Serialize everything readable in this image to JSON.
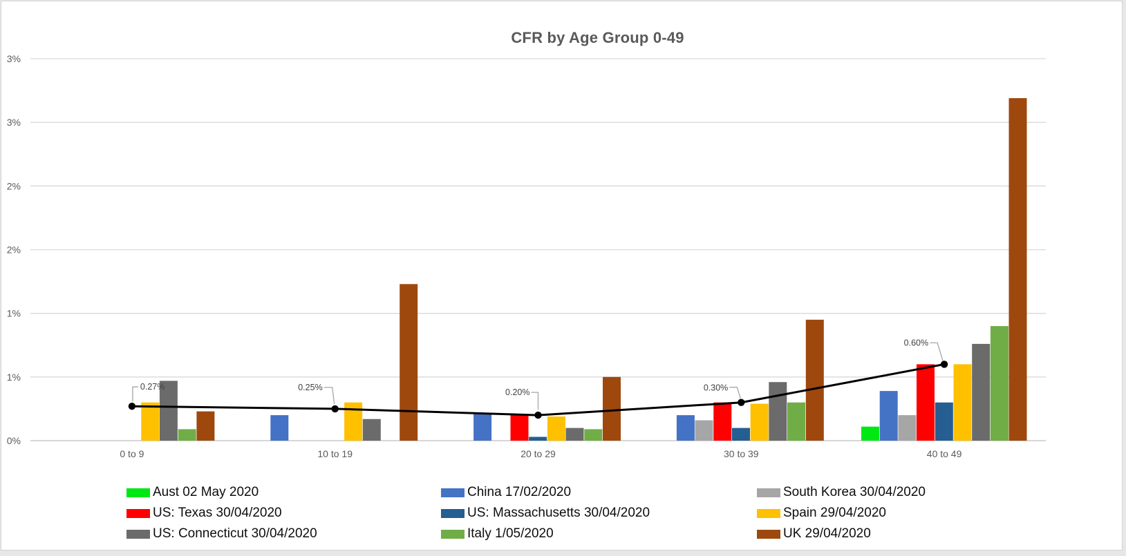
{
  "title": "CFR by Age Group 0-49",
  "y_axis": {
    "tick_labels_top_to_bottom": [
      "3%",
      "3%",
      "2%",
      "2%",
      "1%",
      "1%",
      "0%"
    ]
  },
  "colors": {
    "axis_text": "#595959",
    "data_label_text": "#404040",
    "legend_text": "#0d0d0d",
    "gridline": "#d9d9d9",
    "axis_line": "#bfbfbf",
    "leader_line": "#a6a6a6",
    "trend_line": "#000000",
    "panel_background": "#ffffff",
    "page_background": "#e7e7e7"
  },
  "chart_data": {
    "type": "bar",
    "title": "CFR by Age Group 0-49",
    "xlabel": "",
    "ylabel": "",
    "ylim": [
      0,
      3.0
    ],
    "gridline_step_pct": 0.5,
    "grid": true,
    "legend_position": "bottom",
    "categories": [
      "0 to 9",
      "10 to 19",
      "20 to 29",
      "30 to 39",
      "40 to 49"
    ],
    "series": [
      {
        "name": "Aust 02 May 2020",
        "color": "#00e813",
        "values": [
          0,
          0,
          0,
          0,
          0.11
        ]
      },
      {
        "name": "China 17/02/2020",
        "color": "#4472c4",
        "values": [
          0,
          0.2,
          0.21,
          0.2,
          0.39
        ]
      },
      {
        "name": "South Korea 30/04/2020",
        "color": "#a6a6a6",
        "values": [
          0,
          0,
          0,
          0.16,
          0.2
        ]
      },
      {
        "name": "US: Texas 30/04/2020",
        "color": "#ff0000",
        "values": [
          0,
          0,
          0.2,
          0.3,
          0.6
        ]
      },
      {
        "name": "US: Massachusetts 30/04/2020",
        "color": "#255e91",
        "values": [
          0,
          0,
          0.03,
          0.1,
          0.3
        ]
      },
      {
        "name": "Spain 29/04/2020",
        "color": "#ffc000",
        "values": [
          0.3,
          0.3,
          0.19,
          0.29,
          0.6
        ]
      },
      {
        "name": "US: Connecticut 30/04/2020",
        "color": "#6b6b6b",
        "values": [
          0.47,
          0.17,
          0.1,
          0.46,
          0.76
        ]
      },
      {
        "name": "Italy 1/05/2020",
        "color": "#70ad47",
        "values": [
          0.09,
          0,
          0.09,
          0.3,
          0.9
        ]
      },
      {
        "name": "UK 29/04/2020",
        "color": "#9e480e",
        "values": [
          0.23,
          1.23,
          0.5,
          0.95,
          2.69
        ]
      }
    ],
    "line_series": {
      "color": "#000000",
      "values": [
        0.27,
        0.25,
        0.2,
        0.3,
        0.6
      ],
      "data_labels": [
        "0.27%",
        "0.25%",
        "0.20%",
        "0.30%",
        "0.60%"
      ]
    }
  }
}
